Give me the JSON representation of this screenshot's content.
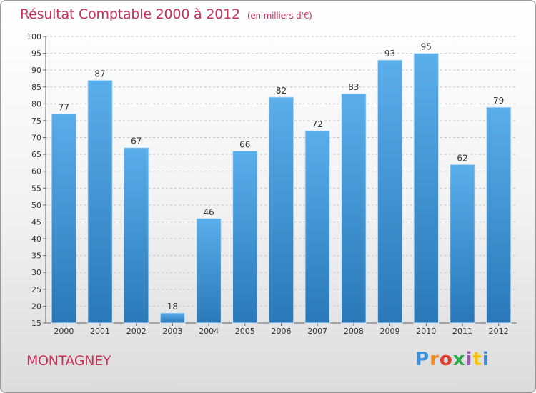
{
  "header": {
    "title": "Résultat Comptable 2000 à 2012",
    "subtitle": "(en milliers d'€)"
  },
  "footer": {
    "place": "MONTAGNEY",
    "logo_text": "Proxiti"
  },
  "colors": {
    "title": "#c8305a",
    "bar_top": "#5aaeea",
    "bar_bottom": "#2a78b8",
    "grid": "#c8c8c8"
  },
  "chart_data": {
    "type": "bar",
    "categories": [
      "2000",
      "2001",
      "2002",
      "2003",
      "2004",
      "2005",
      "2006",
      "2007",
      "2008",
      "2009",
      "2010",
      "2011",
      "2012"
    ],
    "values": [
      77,
      87,
      67,
      18,
      46,
      66,
      82,
      72,
      83,
      93,
      95,
      62,
      79
    ],
    "title": "Résultat Comptable 2000 à 2012",
    "xlabel": "",
    "ylabel": "",
    "ylim": [
      15,
      100
    ],
    "yticks": [
      15,
      20,
      25,
      30,
      35,
      40,
      45,
      50,
      55,
      60,
      65,
      70,
      75,
      80,
      85,
      90,
      95,
      100
    ],
    "grid": "horizontal dashed",
    "data_labels": true
  }
}
